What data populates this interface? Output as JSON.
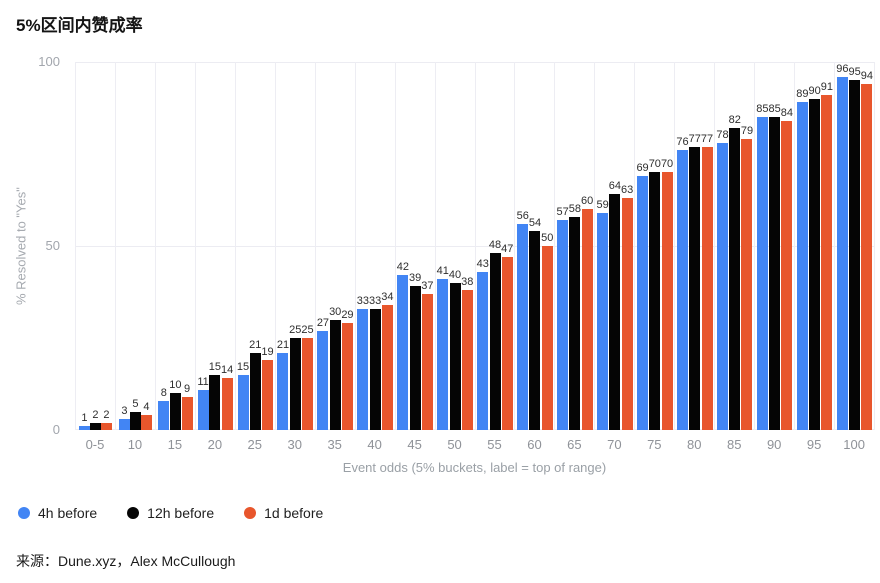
{
  "title": "5%区间内赞成率",
  "source_text": "来源：Dune.xyz，Alex McCullough",
  "chart_data": {
    "type": "bar",
    "title": "5%区间内赞成率",
    "xlabel": "Event odds (5% buckets, label = top of range)",
    "ylabel": "% Resolved to \"Yes\"",
    "ylim": [
      0,
      100
    ],
    "yticks": [
      0,
      50,
      100
    ],
    "grid": true,
    "legend_position": "bottom",
    "categories": [
      "0-5",
      "10",
      "15",
      "20",
      "25",
      "30",
      "35",
      "40",
      "45",
      "50",
      "55",
      "60",
      "65",
      "70",
      "75",
      "80",
      "85",
      "90",
      "95",
      "100"
    ],
    "series": [
      {
        "name": "4h before",
        "color": "#4285F4",
        "values": [
          1,
          3,
          8,
          11,
          15,
          21,
          27,
          33,
          42,
          41,
          43,
          56,
          57,
          59,
          69,
          76,
          78,
          85,
          89,
          96
        ]
      },
      {
        "name": "12h before",
        "color": "#050505",
        "values": [
          2,
          5,
          10,
          15,
          21,
          25,
          30,
          33,
          39,
          40,
          48,
          54,
          58,
          64,
          70,
          77,
          82,
          85,
          90,
          95
        ]
      },
      {
        "name": "1d before",
        "color": "#E8562C",
        "values": [
          2,
          4,
          9,
          14,
          19,
          25,
          29,
          34,
          37,
          38,
          47,
          50,
          60,
          63,
          70,
          77,
          79,
          84,
          91,
          94
        ]
      }
    ]
  }
}
